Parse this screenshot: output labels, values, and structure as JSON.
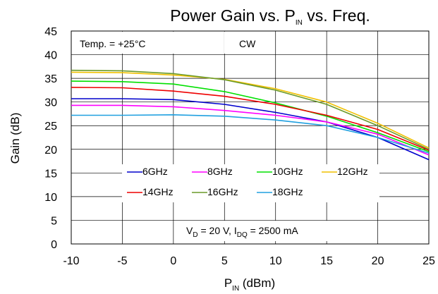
{
  "chart_data": {
    "type": "line",
    "title": {
      "main": "Power Gain vs. P",
      "sub": "IN",
      "tail": " vs. Freq."
    },
    "xlabel": {
      "main": "P",
      "sub": "IN",
      "tail": " (dBm)"
    },
    "ylabel": "Gain (dB)",
    "xlim": [
      -10,
      25
    ],
    "ylim": [
      0,
      45
    ],
    "xticks": [
      -10,
      -5,
      0,
      5,
      10,
      15,
      20,
      25
    ],
    "yticks": [
      0,
      5,
      10,
      15,
      20,
      25,
      30,
      35,
      40,
      45
    ],
    "grid": true,
    "annotations": {
      "temp": "Temp. = +25°C",
      "mode": "CW",
      "bias": {
        "v": "V",
        "v_sub": "D",
        "v_val": " = 20 V, I",
        "i_sub": "DQ",
        "i_val": " = 2500 mA"
      }
    },
    "legend_placement": "bottom-center, inside plot",
    "series": [
      {
        "name": "6GHz",
        "color": "#0000cc",
        "x": [
          -10,
          -5,
          0,
          5,
          10,
          15,
          20,
          25
        ],
        "y": [
          30.7,
          30.7,
          30.5,
          29.5,
          27.8,
          25.8,
          22.5,
          17.8
        ]
      },
      {
        "name": "8GHz",
        "color": "#ff00ff",
        "x": [
          -10,
          -5,
          0,
          5,
          10,
          15,
          20,
          25
        ],
        "y": [
          29.3,
          29.3,
          29.0,
          28.2,
          27.2,
          25.8,
          23.2,
          18.8
        ]
      },
      {
        "name": "10GHz",
        "color": "#00e000",
        "x": [
          -10,
          -5,
          0,
          5,
          10,
          15,
          20,
          25
        ],
        "y": [
          34.4,
          34.3,
          33.8,
          32.2,
          29.8,
          27.0,
          23.5,
          19.5
        ]
      },
      {
        "name": "12GHz",
        "color": "#f0c000",
        "x": [
          -10,
          -5,
          0,
          5,
          10,
          15,
          20,
          25
        ],
        "y": [
          36.3,
          36.2,
          35.7,
          34.8,
          32.8,
          30.0,
          25.5,
          20.3
        ]
      },
      {
        "name": "14GHz",
        "color": "#ee0000",
        "x": [
          -10,
          -5,
          0,
          5,
          10,
          15,
          20,
          25
        ],
        "y": [
          33.1,
          33.0,
          32.3,
          31.2,
          29.5,
          27.2,
          24.2,
          19.8
        ]
      },
      {
        "name": "16GHz",
        "color": "#6a9a2a",
        "x": [
          -10,
          -5,
          0,
          5,
          10,
          15,
          20,
          25
        ],
        "y": [
          36.7,
          36.6,
          36.0,
          34.7,
          32.5,
          29.5,
          25.0,
          20.0
        ]
      },
      {
        "name": "18GHz",
        "color": "#20a0e0",
        "x": [
          -10,
          -5,
          0,
          5,
          10,
          15,
          20,
          25
        ],
        "y": [
          27.2,
          27.2,
          27.3,
          27.0,
          26.2,
          25.0,
          22.5,
          19.2
        ]
      }
    ]
  }
}
